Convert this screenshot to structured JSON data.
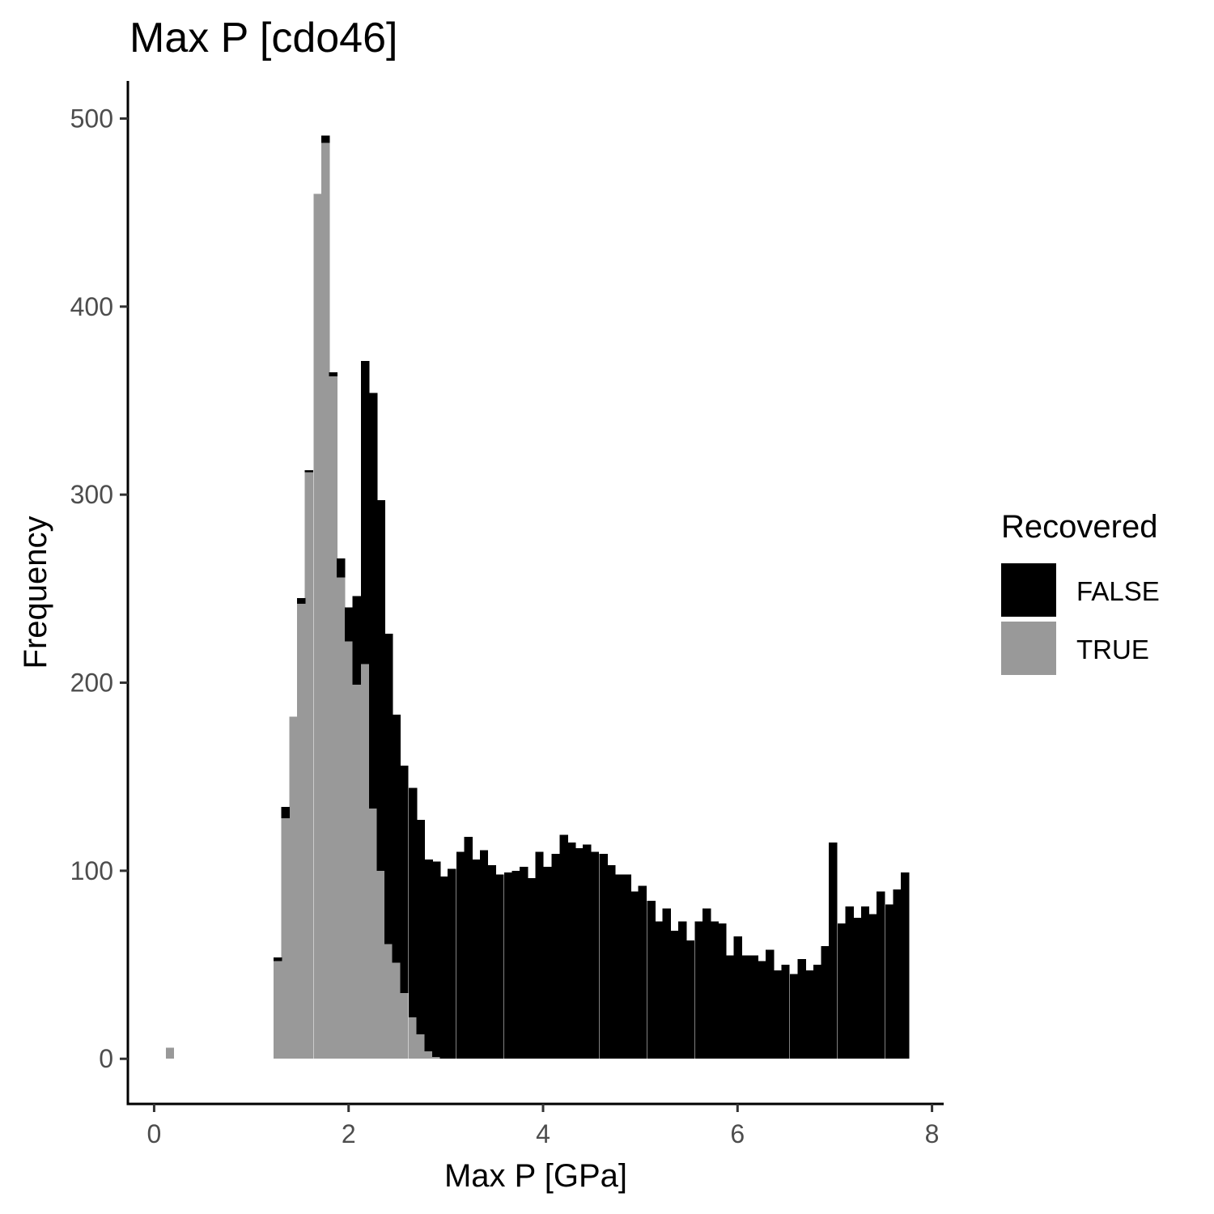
{
  "chart_data": {
    "type": "bar",
    "title": "Max P [cdo46]",
    "xlabel": "Max P [GPa]",
    "ylabel": "Frequency",
    "stacked": true,
    "bin_width": 0.0818,
    "xlim": [
      -0.27,
      8.12
    ],
    "ylim": [
      -24,
      520
    ],
    "xticks": [
      0,
      2,
      4,
      6,
      8
    ],
    "yticks": [
      0,
      100,
      200,
      300,
      400,
      500
    ],
    "grid": false,
    "legend": {
      "title": "Recovered",
      "position": "right"
    },
    "series": [
      {
        "name": "FALSE",
        "color": "#000000",
        "x": [
          1.27,
          1.35,
          1.43,
          1.51,
          1.59,
          1.68,
          1.76,
          1.84,
          1.92,
          2.0,
          2.08,
          2.17,
          2.25,
          2.33,
          2.41,
          2.49,
          2.57,
          2.66,
          2.74,
          2.82,
          2.9,
          2.98,
          3.06,
          3.15,
          3.23,
          3.31,
          3.39,
          3.47,
          3.55,
          3.64,
          3.72,
          3.8,
          3.88,
          3.96,
          4.04,
          4.13,
          4.21,
          4.29,
          4.37,
          4.45,
          4.53,
          4.62,
          4.7,
          4.78,
          4.86,
          4.94,
          5.02,
          5.11,
          5.19,
          5.27,
          5.35,
          5.43,
          5.51,
          5.6,
          5.68,
          5.76,
          5.84,
          5.92,
          6.0,
          6.09,
          6.17,
          6.25,
          6.33,
          6.41,
          6.49,
          6.58,
          6.66,
          6.74,
          6.82,
          6.9,
          6.98,
          7.07,
          7.15,
          7.23,
          7.31,
          7.39,
          7.47,
          7.56,
          7.64,
          7.72
        ],
        "values": [
          2,
          6,
          0,
          3,
          1,
          0,
          4,
          2,
          10,
          18,
          47,
          161,
          221,
          197,
          165,
          132,
          121,
          122,
          114,
          102,
          104,
          97,
          101,
          110,
          118,
          106,
          111,
          103,
          98,
          99,
          100,
          102,
          96,
          110,
          102,
          109,
          119,
          115,
          112,
          114,
          110,
          109,
          103,
          98,
          98,
          89,
          92,
          84,
          73,
          80,
          68,
          73,
          63,
          73,
          80,
          73,
          72,
          55,
          65,
          55,
          55,
          52,
          58,
          47,
          50,
          45,
          53,
          47,
          50,
          60,
          115,
          72,
          81,
          75,
          81,
          77,
          89,
          82,
          90,
          99
        ]
      },
      {
        "name": "TRUE",
        "color": "#999999",
        "x": [
          0.16,
          1.27,
          1.35,
          1.43,
          1.51,
          1.59,
          1.68,
          1.76,
          1.84,
          1.92,
          2.0,
          2.08,
          2.17,
          2.25,
          2.33,
          2.41,
          2.49,
          2.57,
          2.66,
          2.74,
          2.82,
          2.9
        ],
        "values": [
          6,
          52,
          128,
          182,
          242,
          312,
          460,
          487,
          363,
          256,
          222,
          199,
          210,
          133,
          100,
          61,
          51,
          35,
          22,
          13,
          4,
          1
        ]
      }
    ]
  }
}
